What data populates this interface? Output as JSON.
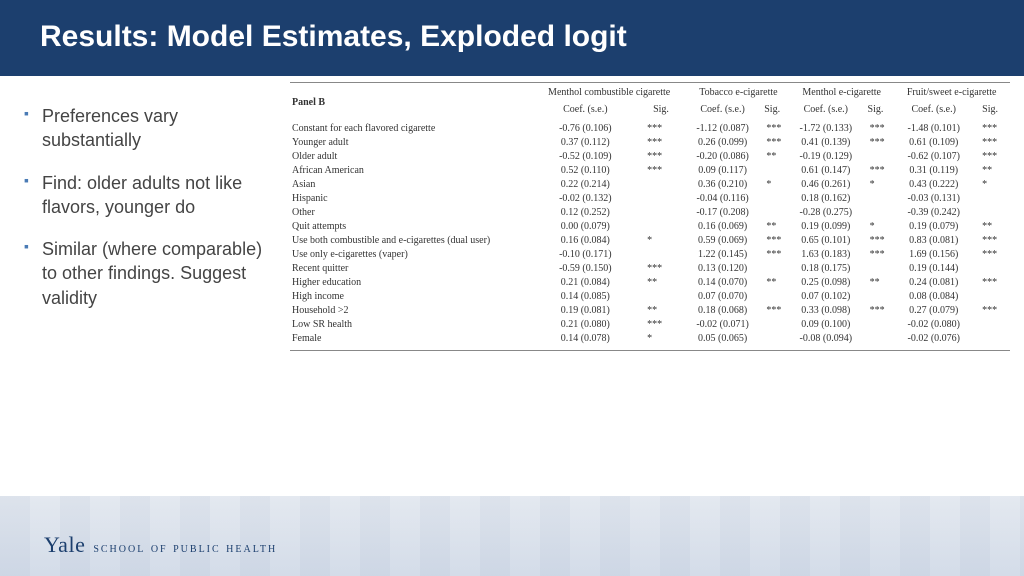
{
  "title": "Results: Model Estimates, Exploded logit",
  "bullets": [
    "Preferences vary substantially",
    "Find: older adults not like flavors, younger do",
    "Similar (where comparable) to other findings. Suggest validity"
  ],
  "table": {
    "panel_label": "Panel B",
    "column_groups": [
      "Menthol combustible cigarette",
      "Tobacco e-cigarette",
      "Menthol e-cigarette",
      "Fruit/sweet e-cigarette"
    ],
    "sub_coef": "Coef. (s.e.)",
    "sub_sig": "Sig.",
    "rows": [
      {
        "label": "Constant for each flavored cigarette",
        "cells": [
          [
            "-0.76 (0.106)",
            "***"
          ],
          [
            "-1.12 (0.087)",
            "***"
          ],
          [
            "-1.72 (0.133)",
            "***"
          ],
          [
            "-1.48 (0.101)",
            "***"
          ]
        ]
      },
      {
        "label": "Younger adult",
        "cells": [
          [
            "0.37 (0.112)",
            "***"
          ],
          [
            "0.26 (0.099)",
            "***"
          ],
          [
            "0.41 (0.139)",
            "***"
          ],
          [
            "0.61 (0.109)",
            "***"
          ]
        ]
      },
      {
        "label": "Older adult",
        "cells": [
          [
            "-0.52 (0.109)",
            "***"
          ],
          [
            "-0.20 (0.086)",
            "**"
          ],
          [
            "-0.19 (0.129)",
            ""
          ],
          [
            "-0.62 (0.107)",
            "***"
          ]
        ]
      },
      {
        "label": "African American",
        "cells": [
          [
            "0.52 (0.110)",
            "***"
          ],
          [
            "0.09 (0.117)",
            ""
          ],
          [
            "0.61 (0.147)",
            "***"
          ],
          [
            "0.31 (0.119)",
            "**"
          ]
        ]
      },
      {
        "label": "Asian",
        "cells": [
          [
            "0.22 (0.214)",
            ""
          ],
          [
            "0.36 (0.210)",
            "*"
          ],
          [
            "0.46 (0.261)",
            "*"
          ],
          [
            "0.43 (0.222)",
            "*"
          ]
        ]
      },
      {
        "label": "Hispanic",
        "cells": [
          [
            "-0.02 (0.132)",
            ""
          ],
          [
            "-0.04 (0.116)",
            ""
          ],
          [
            "0.18 (0.162)",
            ""
          ],
          [
            "-0.03 (0.131)",
            ""
          ]
        ]
      },
      {
        "label": "Other",
        "cells": [
          [
            "0.12 (0.252)",
            ""
          ],
          [
            "-0.17 (0.208)",
            ""
          ],
          [
            "-0.28 (0.275)",
            ""
          ],
          [
            "-0.39 (0.242)",
            ""
          ]
        ]
      },
      {
        "label": "Quit attempts",
        "cells": [
          [
            "0.00 (0.079)",
            ""
          ],
          [
            "0.16 (0.069)",
            "**"
          ],
          [
            "0.19 (0.099)",
            "*"
          ],
          [
            "0.19 (0.079)",
            "**"
          ]
        ]
      },
      {
        "label": "Use both combustible and e-cigarettes (dual user)",
        "cells": [
          [
            "0.16 (0.084)",
            "*"
          ],
          [
            "0.59 (0.069)",
            "***"
          ],
          [
            "0.65 (0.101)",
            "***"
          ],
          [
            "0.83 (0.081)",
            "***"
          ]
        ]
      },
      {
        "label": "Use only e-cigarettes (vaper)",
        "cells": [
          [
            "-0.10 (0.171)",
            ""
          ],
          [
            "1.22 (0.145)",
            "***"
          ],
          [
            "1.63 (0.183)",
            "***"
          ],
          [
            "1.69 (0.156)",
            "***"
          ]
        ]
      },
      {
        "label": "Recent quitter",
        "cells": [
          [
            "-0.59 (0.150)",
            "***"
          ],
          [
            "0.13 (0.120)",
            ""
          ],
          [
            "0.18 (0.175)",
            ""
          ],
          [
            "0.19 (0.144)",
            ""
          ]
        ]
      },
      {
        "label": "Higher education",
        "cells": [
          [
            "0.21 (0.084)",
            "**"
          ],
          [
            "0.14 (0.070)",
            "**"
          ],
          [
            "0.25 (0.098)",
            "**"
          ],
          [
            "0.24 (0.081)",
            "***"
          ]
        ]
      },
      {
        "label": "High income",
        "cells": [
          [
            "0.14 (0.085)",
            ""
          ],
          [
            "0.07 (0.070)",
            ""
          ],
          [
            "0.07 (0.102)",
            ""
          ],
          [
            "0.08 (0.084)",
            ""
          ]
        ]
      },
      {
        "label": "Household >2",
        "cells": [
          [
            "0.19 (0.081)",
            "**"
          ],
          [
            "0.18 (0.068)",
            "***"
          ],
          [
            "0.33 (0.098)",
            "***"
          ],
          [
            "0.27 (0.079)",
            "***"
          ]
        ]
      },
      {
        "label": "Low SR health",
        "cells": [
          [
            "0.21 (0.080)",
            "***"
          ],
          [
            "-0.02 (0.071)",
            ""
          ],
          [
            "0.09 (0.100)",
            ""
          ],
          [
            "-0.02 (0.080)",
            ""
          ]
        ]
      },
      {
        "label": "Female",
        "cells": [
          [
            "0.14 (0.078)",
            "*"
          ],
          [
            "0.05 (0.065)",
            ""
          ],
          [
            "-0.08 (0.094)",
            ""
          ],
          [
            "-0.02 (0.076)",
            ""
          ]
        ]
      }
    ]
  },
  "footer": {
    "yale": "Yale",
    "dept": "school of public health"
  },
  "colors": {
    "brand_navy": "#1c3f6e",
    "bullet_blue": "#4a7bb5"
  }
}
